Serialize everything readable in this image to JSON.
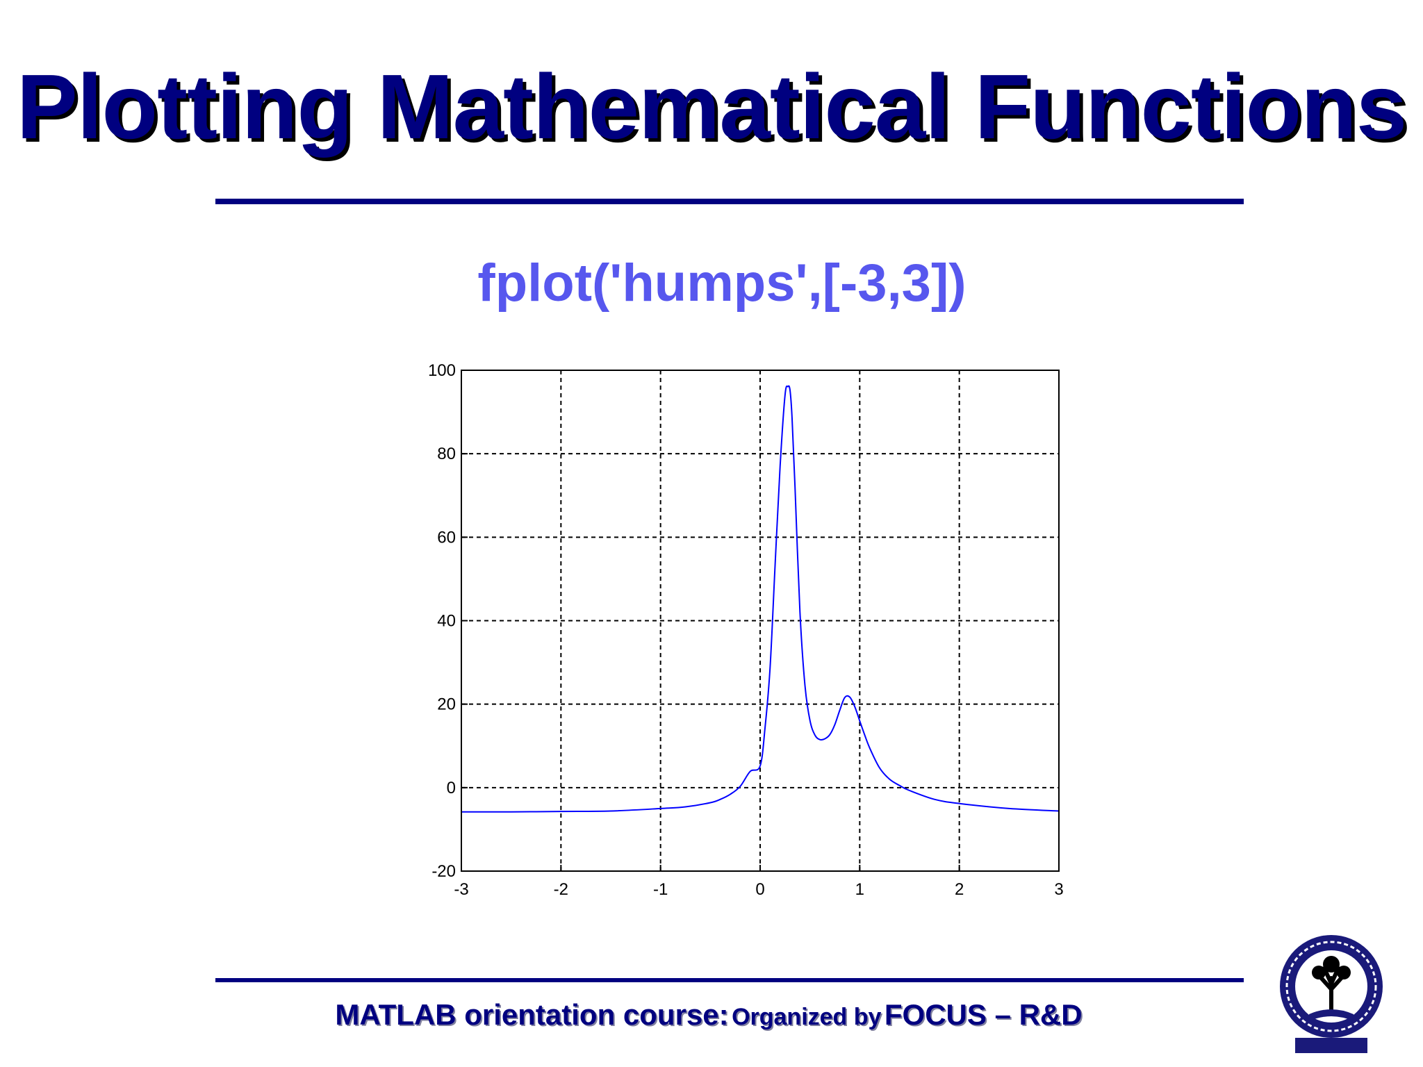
{
  "slide": {
    "title": "Plotting Mathematical Functions",
    "subtitle": "fplot('humps',[-3,3])",
    "footer_course": "MATLAB orientation course:",
    "footer_org_prefix": "Organized by",
    "footer_org": "FOCUS – R&D",
    "logo": "iit-kharagpur-logo-icon"
  },
  "colors": {
    "title": "#000080",
    "subtitle": "#5757ee",
    "line": "#0000ff",
    "grid": "#000000",
    "rule": "#000080"
  },
  "chart_data": {
    "type": "line",
    "title": "",
    "xlabel": "",
    "ylabel": "",
    "xlim": [
      -3,
      3
    ],
    "ylim": [
      -20,
      100
    ],
    "xticks": [
      -3,
      -2,
      -1,
      0,
      1,
      2,
      3
    ],
    "yticks": [
      -20,
      0,
      20,
      40,
      60,
      80,
      100
    ],
    "grid": true,
    "grid_style": "dashed",
    "legend": "none",
    "series": [
      {
        "x": [
          -3,
          -2.5,
          -2,
          -1.5,
          -1,
          -0.75,
          -0.5,
          -0.4,
          -0.3,
          -0.2,
          -0.1,
          0,
          0.05,
          0.1,
          0.15,
          0.2,
          0.25,
          0.28,
          0.3,
          0.32,
          0.35,
          0.4,
          0.45,
          0.5,
          0.55,
          0.6,
          0.65,
          0.7,
          0.75,
          0.8,
          0.85,
          0.9,
          0.95,
          1,
          1.05,
          1.1,
          1.2,
          1.3,
          1.4,
          1.5,
          1.75,
          2,
          2.5,
          3
        ],
        "y": [
          -5.8,
          -5.8,
          -5.7,
          -5.6,
          -5,
          -4.6,
          -3.6,
          -2.8,
          -1.6,
          0.3,
          3.9,
          5.2,
          14.6,
          28.7,
          53.2,
          76.9,
          94,
          96.1,
          95.2,
          88.7,
          72,
          42.1,
          24.5,
          16.1,
          12.6,
          11.5,
          11.7,
          12.7,
          15.1,
          18.6,
          21.6,
          21.7,
          19.4,
          16,
          12.6,
          9.5,
          4.7,
          2,
          0.5,
          -0.7,
          -2.8,
          -3.8,
          -5,
          -5.6
        ]
      }
    ]
  }
}
